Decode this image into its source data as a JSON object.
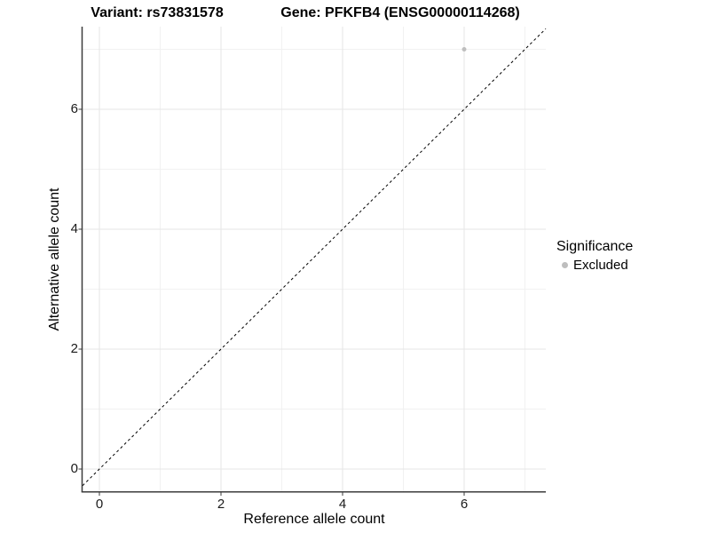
{
  "titles": {
    "variant": "Variant: rs73831578",
    "gene": "Gene: PFKFB4 (ENSG00000114268)"
  },
  "axis": {
    "x_label": "Reference allele count",
    "y_label": "Alternative allele count"
  },
  "legend": {
    "title": "Significance",
    "items": [
      {
        "label": "Excluded",
        "color": "#bebebe"
      }
    ]
  },
  "chart_data": {
    "type": "scatter",
    "title_left": "Variant: rs73831578",
    "title_right": "Gene: PFKFB4 (ENSG00000114268)",
    "xlabel": "Reference allele count",
    "ylabel": "Alternative allele count",
    "xlim": [
      -0.28,
      7.34
    ],
    "ylim": [
      -0.37,
      7.38
    ],
    "x_ticks": [
      0,
      2,
      4,
      6
    ],
    "y_ticks": [
      0,
      2,
      4,
      6
    ],
    "x_minor_ticks": [
      1,
      3,
      5,
      7
    ],
    "y_minor_ticks": [
      1,
      3,
      5,
      7
    ],
    "grid": "major+minor",
    "legend_position": "right",
    "series": [
      {
        "name": "Excluded",
        "color": "#bebebe",
        "points": [
          {
            "x": 6,
            "y": 7
          }
        ]
      }
    ],
    "reference_line": {
      "kind": "identity",
      "slope": 1,
      "intercept": 0,
      "style": "dashed",
      "color": "#000000"
    }
  },
  "colors": {
    "background": "#ffffff",
    "grid_major": "#e5e5e5",
    "grid_minor": "#f1f1f1",
    "axis_line": "#3c3c3c",
    "tick_text": "#1a1a1a",
    "point": "#bebebe"
  }
}
